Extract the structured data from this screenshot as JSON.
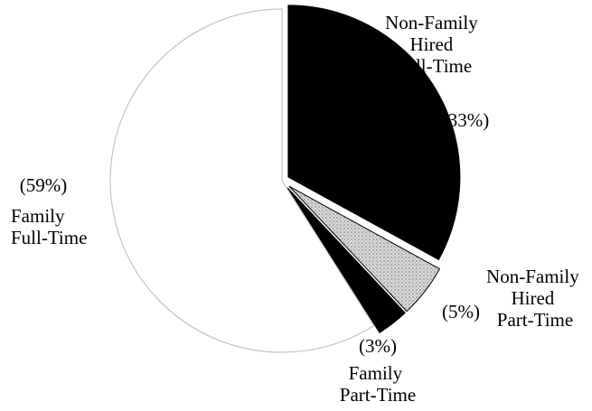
{
  "chart_data": {
    "type": "pie",
    "categories": [
      "Non-Family Hired Full-Time",
      "Non-Family Hired Part-Time",
      "Family Part-Time",
      "Family Full-Time"
    ],
    "values": [
      33,
      5,
      3,
      59
    ],
    "value_labels": [
      "(33%)",
      "(5%)",
      "(3%)",
      "(59%)"
    ],
    "colors": [
      "#000000",
      "#d0d0d0",
      "#000000",
      "#ffffff"
    ]
  }
}
